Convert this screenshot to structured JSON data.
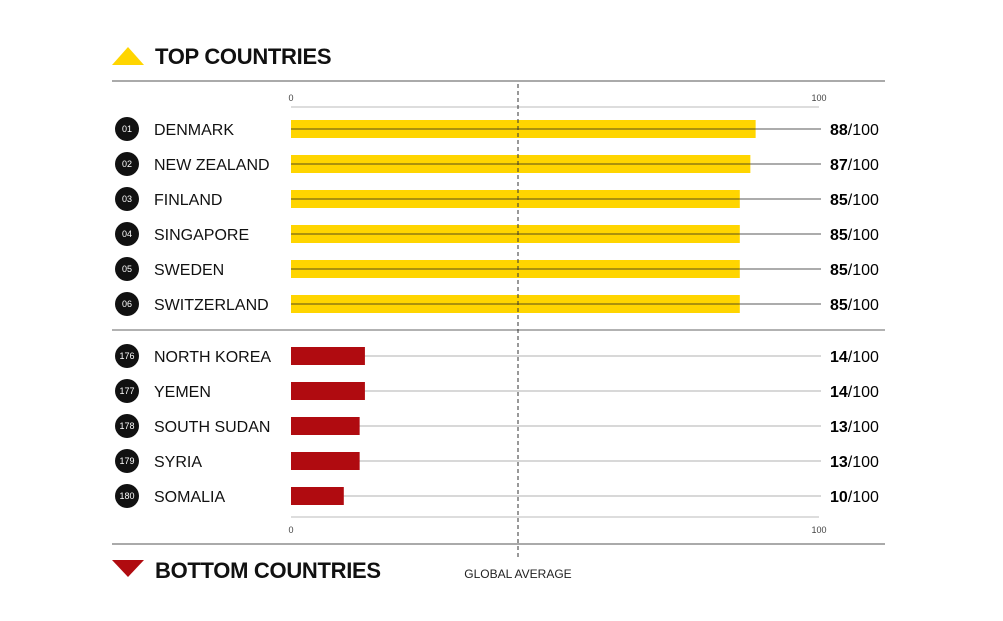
{
  "chart_data": {
    "type": "bar",
    "orientation": "horizontal",
    "xlim": [
      0,
      100
    ],
    "tick_labels": {
      "min": "0",
      "max": "100"
    },
    "score_suffix": "/100",
    "global_average_label": "GLOBAL AVERAGE",
    "groups": [
      {
        "title": "TOP COUNTRIES",
        "color": "#FFD500",
        "marker": "triangle-up-icon",
        "rows": [
          {
            "rank": "01",
            "country": "DENMARK",
            "value": 88
          },
          {
            "rank": "02",
            "country": "NEW ZEALAND",
            "value": 87
          },
          {
            "rank": "03",
            "country": "FINLAND",
            "value": 85
          },
          {
            "rank": "04",
            "country": "SINGAPORE",
            "value": 85
          },
          {
            "rank": "05",
            "country": "SWEDEN",
            "value": 85
          },
          {
            "rank": "06",
            "country": "SWITZERLAND",
            "value": 85
          }
        ]
      },
      {
        "title": "BOTTOM COUNTRIES",
        "color": "#B00B10",
        "marker": "triangle-down-icon",
        "rows": [
          {
            "rank": "176",
            "country": "NORTH KOREA",
            "value": 14
          },
          {
            "rank": "177",
            "country": "YEMEN",
            "value": 14
          },
          {
            "rank": "178",
            "country": "SOUTH SUDAN",
            "value": 13
          },
          {
            "rank": "179",
            "country": "SYRIA",
            "value": 13
          },
          {
            "rank": "180",
            "country": "SOMALIA",
            "value": 10
          }
        ]
      }
    ]
  }
}
